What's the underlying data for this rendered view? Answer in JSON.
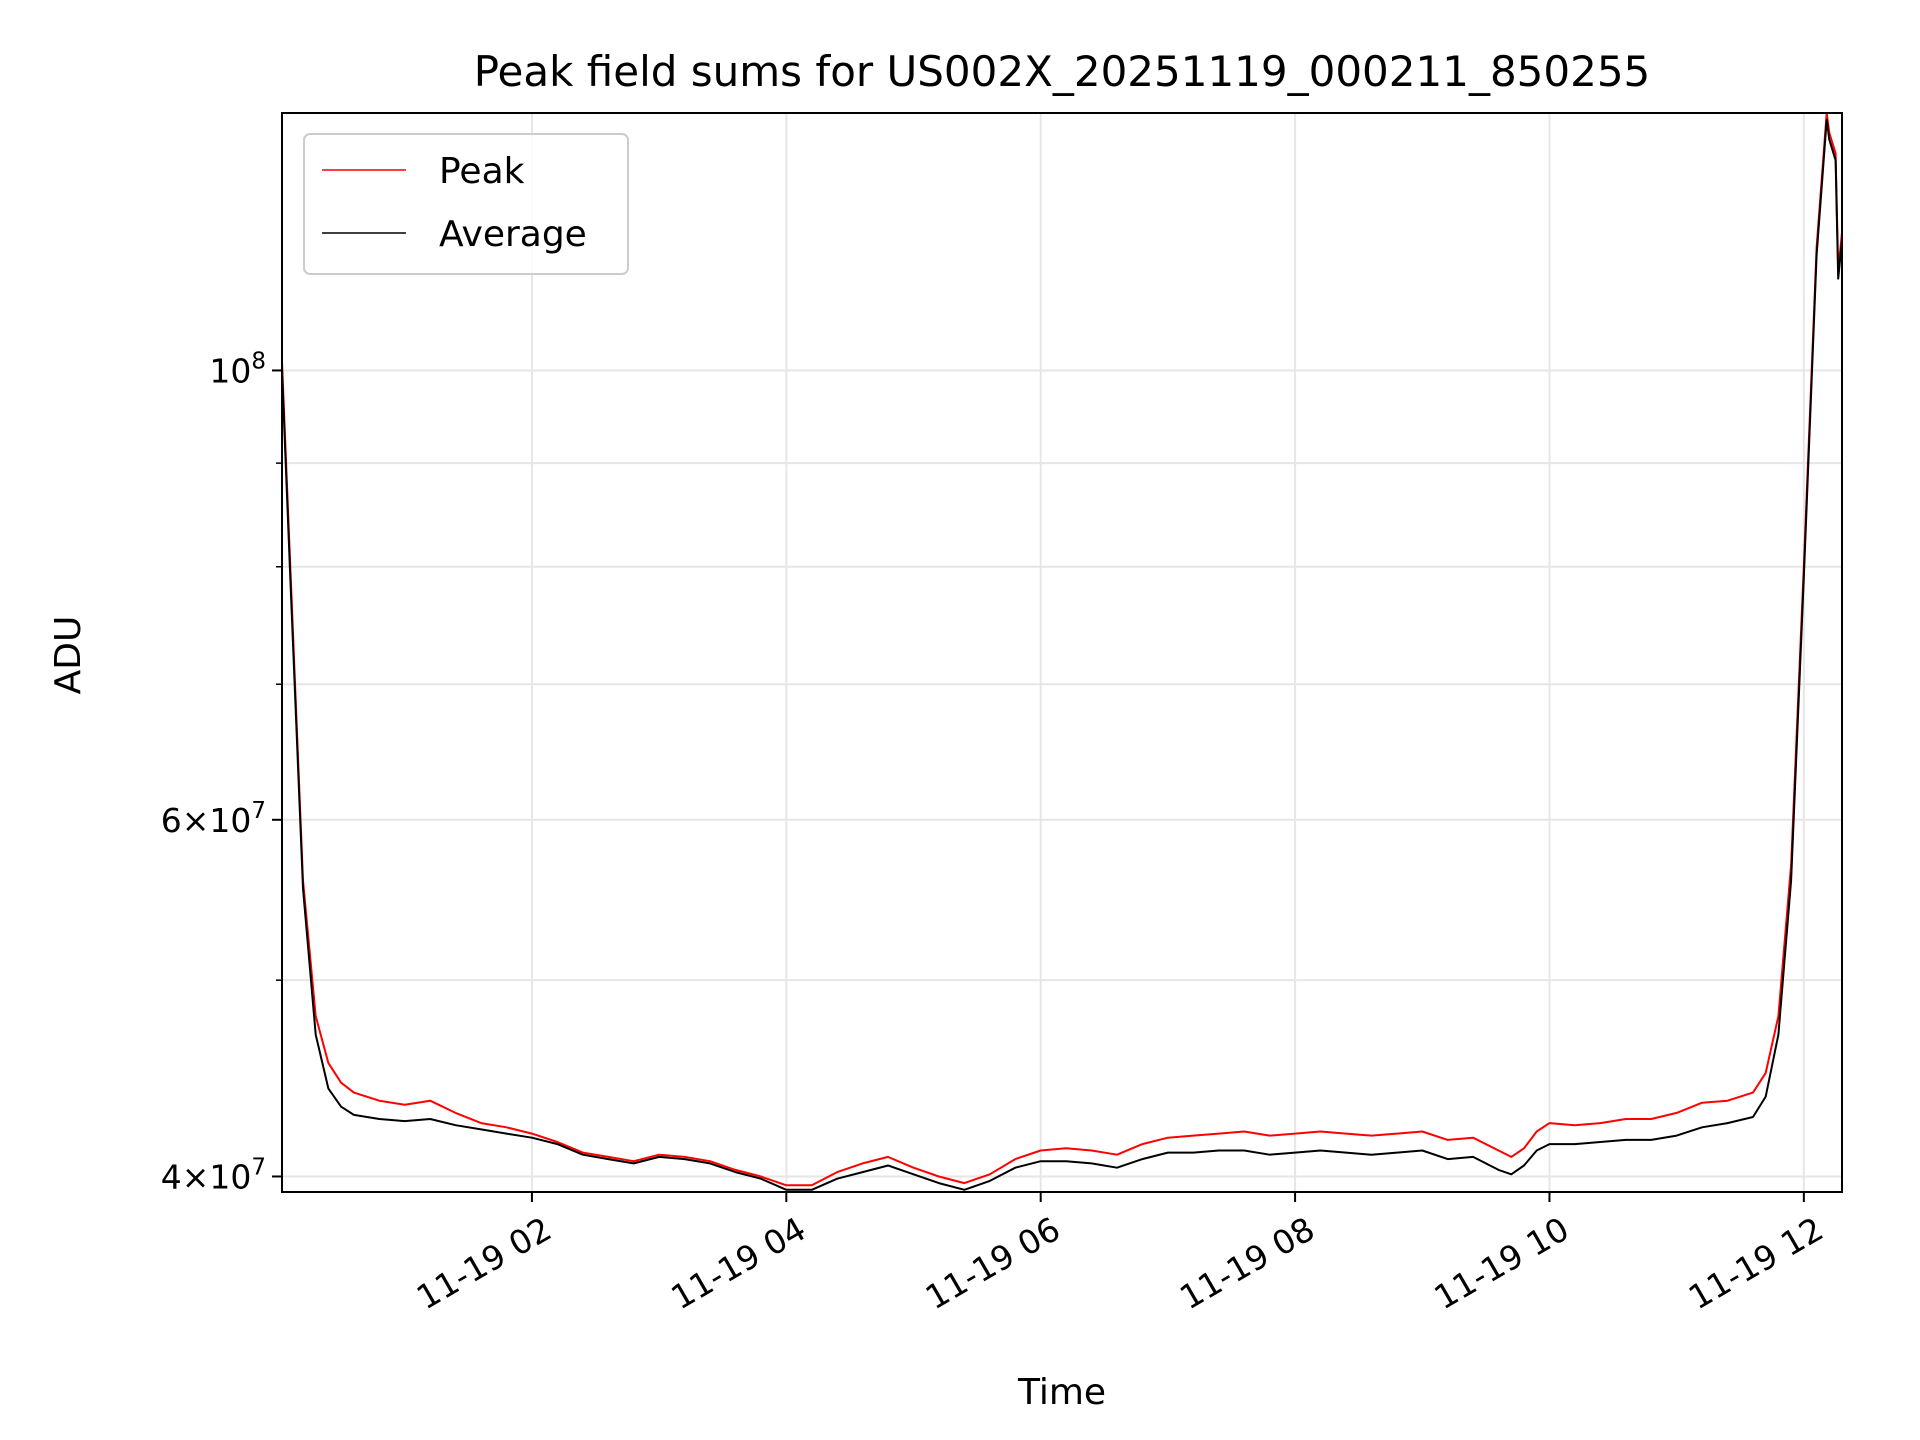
{
  "chart_data": {
    "type": "line",
    "title": "Peak field sums for US002X_20251119_000211_850255",
    "xlabel": "Time",
    "ylabel": "ADU",
    "yscale": "log",
    "xlim_hours": [
      0.035,
      12.3
    ],
    "ylim": [
      39300000,
      134000000
    ],
    "grid": true,
    "legend_position": "top-left",
    "x_ticks": [
      {
        "hour": 2,
        "label": "11-19 02"
      },
      {
        "hour": 4,
        "label": "11-19 04"
      },
      {
        "hour": 6,
        "label": "11-19 06"
      },
      {
        "hour": 8,
        "label": "11-19 08"
      },
      {
        "hour": 10,
        "label": "11-19 10"
      },
      {
        "hour": 12,
        "label": "11-19 12"
      }
    ],
    "y_major_ticks": [
      {
        "value": 40000000,
        "mantissa": "4",
        "exp": "7"
      },
      {
        "value": 60000000,
        "mantissa": "6",
        "exp": "7"
      },
      {
        "value": 100000000,
        "mantissa": "",
        "exp": "8"
      }
    ],
    "y_minor_ticks": [
      50000000,
      70000000,
      80000000,
      90000000
    ],
    "series": [
      {
        "name": "Peak",
        "color": "#ff0000",
        "x_hours": [
          0.035,
          0.1,
          0.2,
          0.3,
          0.4,
          0.5,
          0.6,
          0.8,
          1.0,
          1.2,
          1.4,
          1.6,
          1.8,
          2.0,
          2.2,
          2.4,
          2.6,
          2.8,
          3.0,
          3.2,
          3.4,
          3.6,
          3.8,
          4.0,
          4.2,
          4.4,
          4.6,
          4.8,
          5.0,
          5.2,
          5.4,
          5.6,
          5.8,
          6.0,
          6.2,
          6.4,
          6.6,
          6.8,
          7.0,
          7.2,
          7.4,
          7.6,
          7.8,
          8.0,
          8.2,
          8.4,
          8.6,
          8.8,
          9.0,
          9.2,
          9.4,
          9.6,
          9.7,
          9.8,
          9.9,
          10.0,
          10.2,
          10.4,
          10.6,
          10.8,
          11.0,
          11.2,
          11.4,
          11.6,
          11.7,
          11.8,
          11.9,
          12.0,
          12.1,
          12.18,
          12.2,
          12.25,
          12.27,
          12.3
        ],
        "values": [
          101000000,
          80000000,
          56000000,
          48000000,
          45500000,
          44500000,
          44000000,
          43600000,
          43400000,
          43600000,
          43000000,
          42500000,
          42300000,
          42000000,
          41600000,
          41100000,
          40900000,
          40700000,
          41000000,
          40900000,
          40700000,
          40300000,
          40000000,
          39600000,
          39600000,
          40200000,
          40600000,
          40900000,
          40400000,
          40000000,
          39700000,
          40100000,
          40800000,
          41200000,
          41300000,
          41200000,
          41000000,
          41500000,
          41800000,
          41900000,
          42000000,
          42100000,
          41900000,
          42000000,
          42100000,
          42000000,
          41900000,
          42000000,
          42100000,
          41700000,
          41800000,
          41200000,
          40900000,
          41300000,
          42100000,
          42500000,
          42400000,
          42500000,
          42700000,
          42700000,
          43000000,
          43500000,
          43600000,
          44000000,
          45000000,
          48000000,
          57000000,
          80000000,
          115000000,
          134000000,
          131000000,
          128000000,
          112000000,
          117000000
        ]
      },
      {
        "name": "Average",
        "color": "#000000",
        "x_hours": [
          0.035,
          0.1,
          0.2,
          0.3,
          0.4,
          0.5,
          0.6,
          0.8,
          1.0,
          1.2,
          1.4,
          1.6,
          1.8,
          2.0,
          2.2,
          2.4,
          2.6,
          2.8,
          3.0,
          3.2,
          3.4,
          3.6,
          3.8,
          4.0,
          4.2,
          4.4,
          4.6,
          4.8,
          5.0,
          5.2,
          5.4,
          5.6,
          5.8,
          6.0,
          6.2,
          6.4,
          6.6,
          6.8,
          7.0,
          7.2,
          7.4,
          7.6,
          7.8,
          8.0,
          8.2,
          8.4,
          8.6,
          8.8,
          9.0,
          9.2,
          9.4,
          9.6,
          9.7,
          9.8,
          9.9,
          10.0,
          10.2,
          10.4,
          10.6,
          10.8,
          11.0,
          11.2,
          11.4,
          11.6,
          11.7,
          11.8,
          11.9,
          12.0,
          12.1,
          12.18,
          12.2,
          12.25,
          12.27,
          12.3
        ],
        "values": [
          100000000,
          79000000,
          55500000,
          47000000,
          44200000,
          43300000,
          42900000,
          42700000,
          42600000,
          42700000,
          42400000,
          42200000,
          42000000,
          41800000,
          41500000,
          41000000,
          40800000,
          40600000,
          40900000,
          40800000,
          40600000,
          40200000,
          39900000,
          39400000,
          39400000,
          39900000,
          40200000,
          40500000,
          40100000,
          39700000,
          39400000,
          39800000,
          40400000,
          40700000,
          40700000,
          40600000,
          40400000,
          40800000,
          41100000,
          41100000,
          41200000,
          41200000,
          41000000,
          41100000,
          41200000,
          41100000,
          41000000,
          41100000,
          41200000,
          40800000,
          40900000,
          40300000,
          40100000,
          40500000,
          41200000,
          41500000,
          41500000,
          41600000,
          41700000,
          41700000,
          41900000,
          42300000,
          42500000,
          42800000,
          43800000,
          47000000,
          56000000,
          79000000,
          114000000,
          133000000,
          130000000,
          127000000,
          111000000,
          116000000
        ]
      }
    ]
  }
}
